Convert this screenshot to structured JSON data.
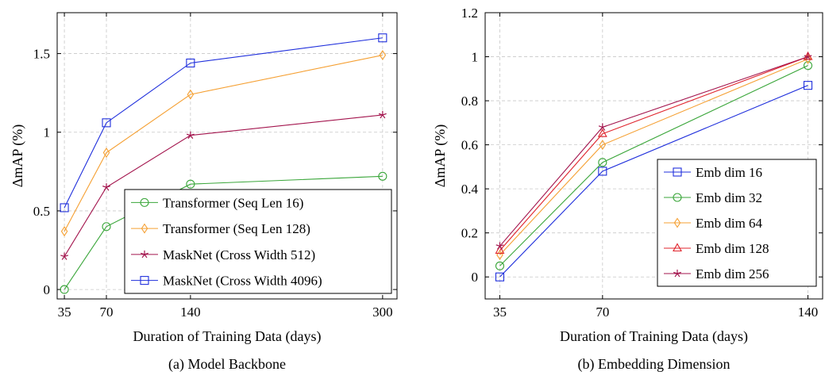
{
  "chart_data": [
    {
      "type": "line",
      "caption": "(a) Model Backbone",
      "xlabel": "Duration of Training Data (days)",
      "ylabel_delta": "Δ",
      "ylabel_rest": "mAP (%)",
      "x_ticks": [
        35,
        70,
        140,
        300
      ],
      "y_ticks": [
        0,
        0.5,
        1,
        1.5
      ],
      "y_tick_labels": [
        "0",
        "0.5",
        "1",
        "1.5"
      ],
      "xlim": [
        29,
        312
      ],
      "ylim": [
        -0.06,
        1.76
      ],
      "grid": true,
      "legend_position": "bottom-right",
      "series": [
        {
          "name": "Transformer (Seq Len 16)",
          "color": "#3aa63a",
          "marker": "circle",
          "x": [
            35,
            70,
            140,
            300
          ],
          "y": [
            0.0,
            0.4,
            0.67,
            0.72
          ]
        },
        {
          "name": "Transformer (Seq Len 128)",
          "color": "#f5a033",
          "marker": "diamond",
          "x": [
            35,
            70,
            140,
            300
          ],
          "y": [
            0.37,
            0.87,
            1.24,
            1.49
          ]
        },
        {
          "name": "MaskNet (Cross Width 512)",
          "color": "#a3144d",
          "marker": "star",
          "x": [
            35,
            70,
            140,
            300
          ],
          "y": [
            0.21,
            0.65,
            0.98,
            1.11
          ]
        },
        {
          "name": "MaskNet (Cross Width 4096)",
          "color": "#1f2fdc",
          "marker": "square",
          "x": [
            35,
            70,
            140,
            300
          ],
          "y": [
            0.52,
            1.06,
            1.44,
            1.6
          ]
        }
      ]
    },
    {
      "type": "line",
      "caption": "(b) Embedding Dimension",
      "xlabel": "Duration of Training Data (days)",
      "ylabel_delta": "Δ",
      "ylabel_rest": "mAP (%)",
      "x_ticks": [
        35,
        70,
        140
      ],
      "y_ticks": [
        0,
        0.2,
        0.4,
        0.6,
        0.8,
        1,
        1.2
      ],
      "y_tick_labels": [
        "0",
        "0.2",
        "0.4",
        "0.6",
        "0.8",
        "1",
        "1.2"
      ],
      "xlim": [
        30,
        145
      ],
      "ylim": [
        -0.1,
        1.2
      ],
      "grid": true,
      "legend_position": "bottom-right",
      "series": [
        {
          "name": "Emb dim 16",
          "color": "#1f2fdc",
          "marker": "square",
          "x": [
            35,
            70,
            140
          ],
          "y": [
            0.0,
            0.48,
            0.87
          ]
        },
        {
          "name": "Emb dim 32",
          "color": "#3aa63a",
          "marker": "circle",
          "x": [
            35,
            70,
            140
          ],
          "y": [
            0.05,
            0.52,
            0.96
          ]
        },
        {
          "name": "Emb dim 64",
          "color": "#f5a033",
          "marker": "diamond",
          "x": [
            35,
            70,
            140
          ],
          "y": [
            0.1,
            0.6,
            0.99
          ]
        },
        {
          "name": "Emb dim 128",
          "color": "#e0242c",
          "marker": "triangle",
          "x": [
            35,
            70,
            140
          ],
          "y": [
            0.12,
            0.65,
            1.0
          ]
        },
        {
          "name": "Emb dim 256",
          "color": "#a3144d",
          "marker": "star",
          "x": [
            35,
            70,
            140
          ],
          "y": [
            0.14,
            0.68,
            1.0
          ]
        }
      ]
    }
  ]
}
